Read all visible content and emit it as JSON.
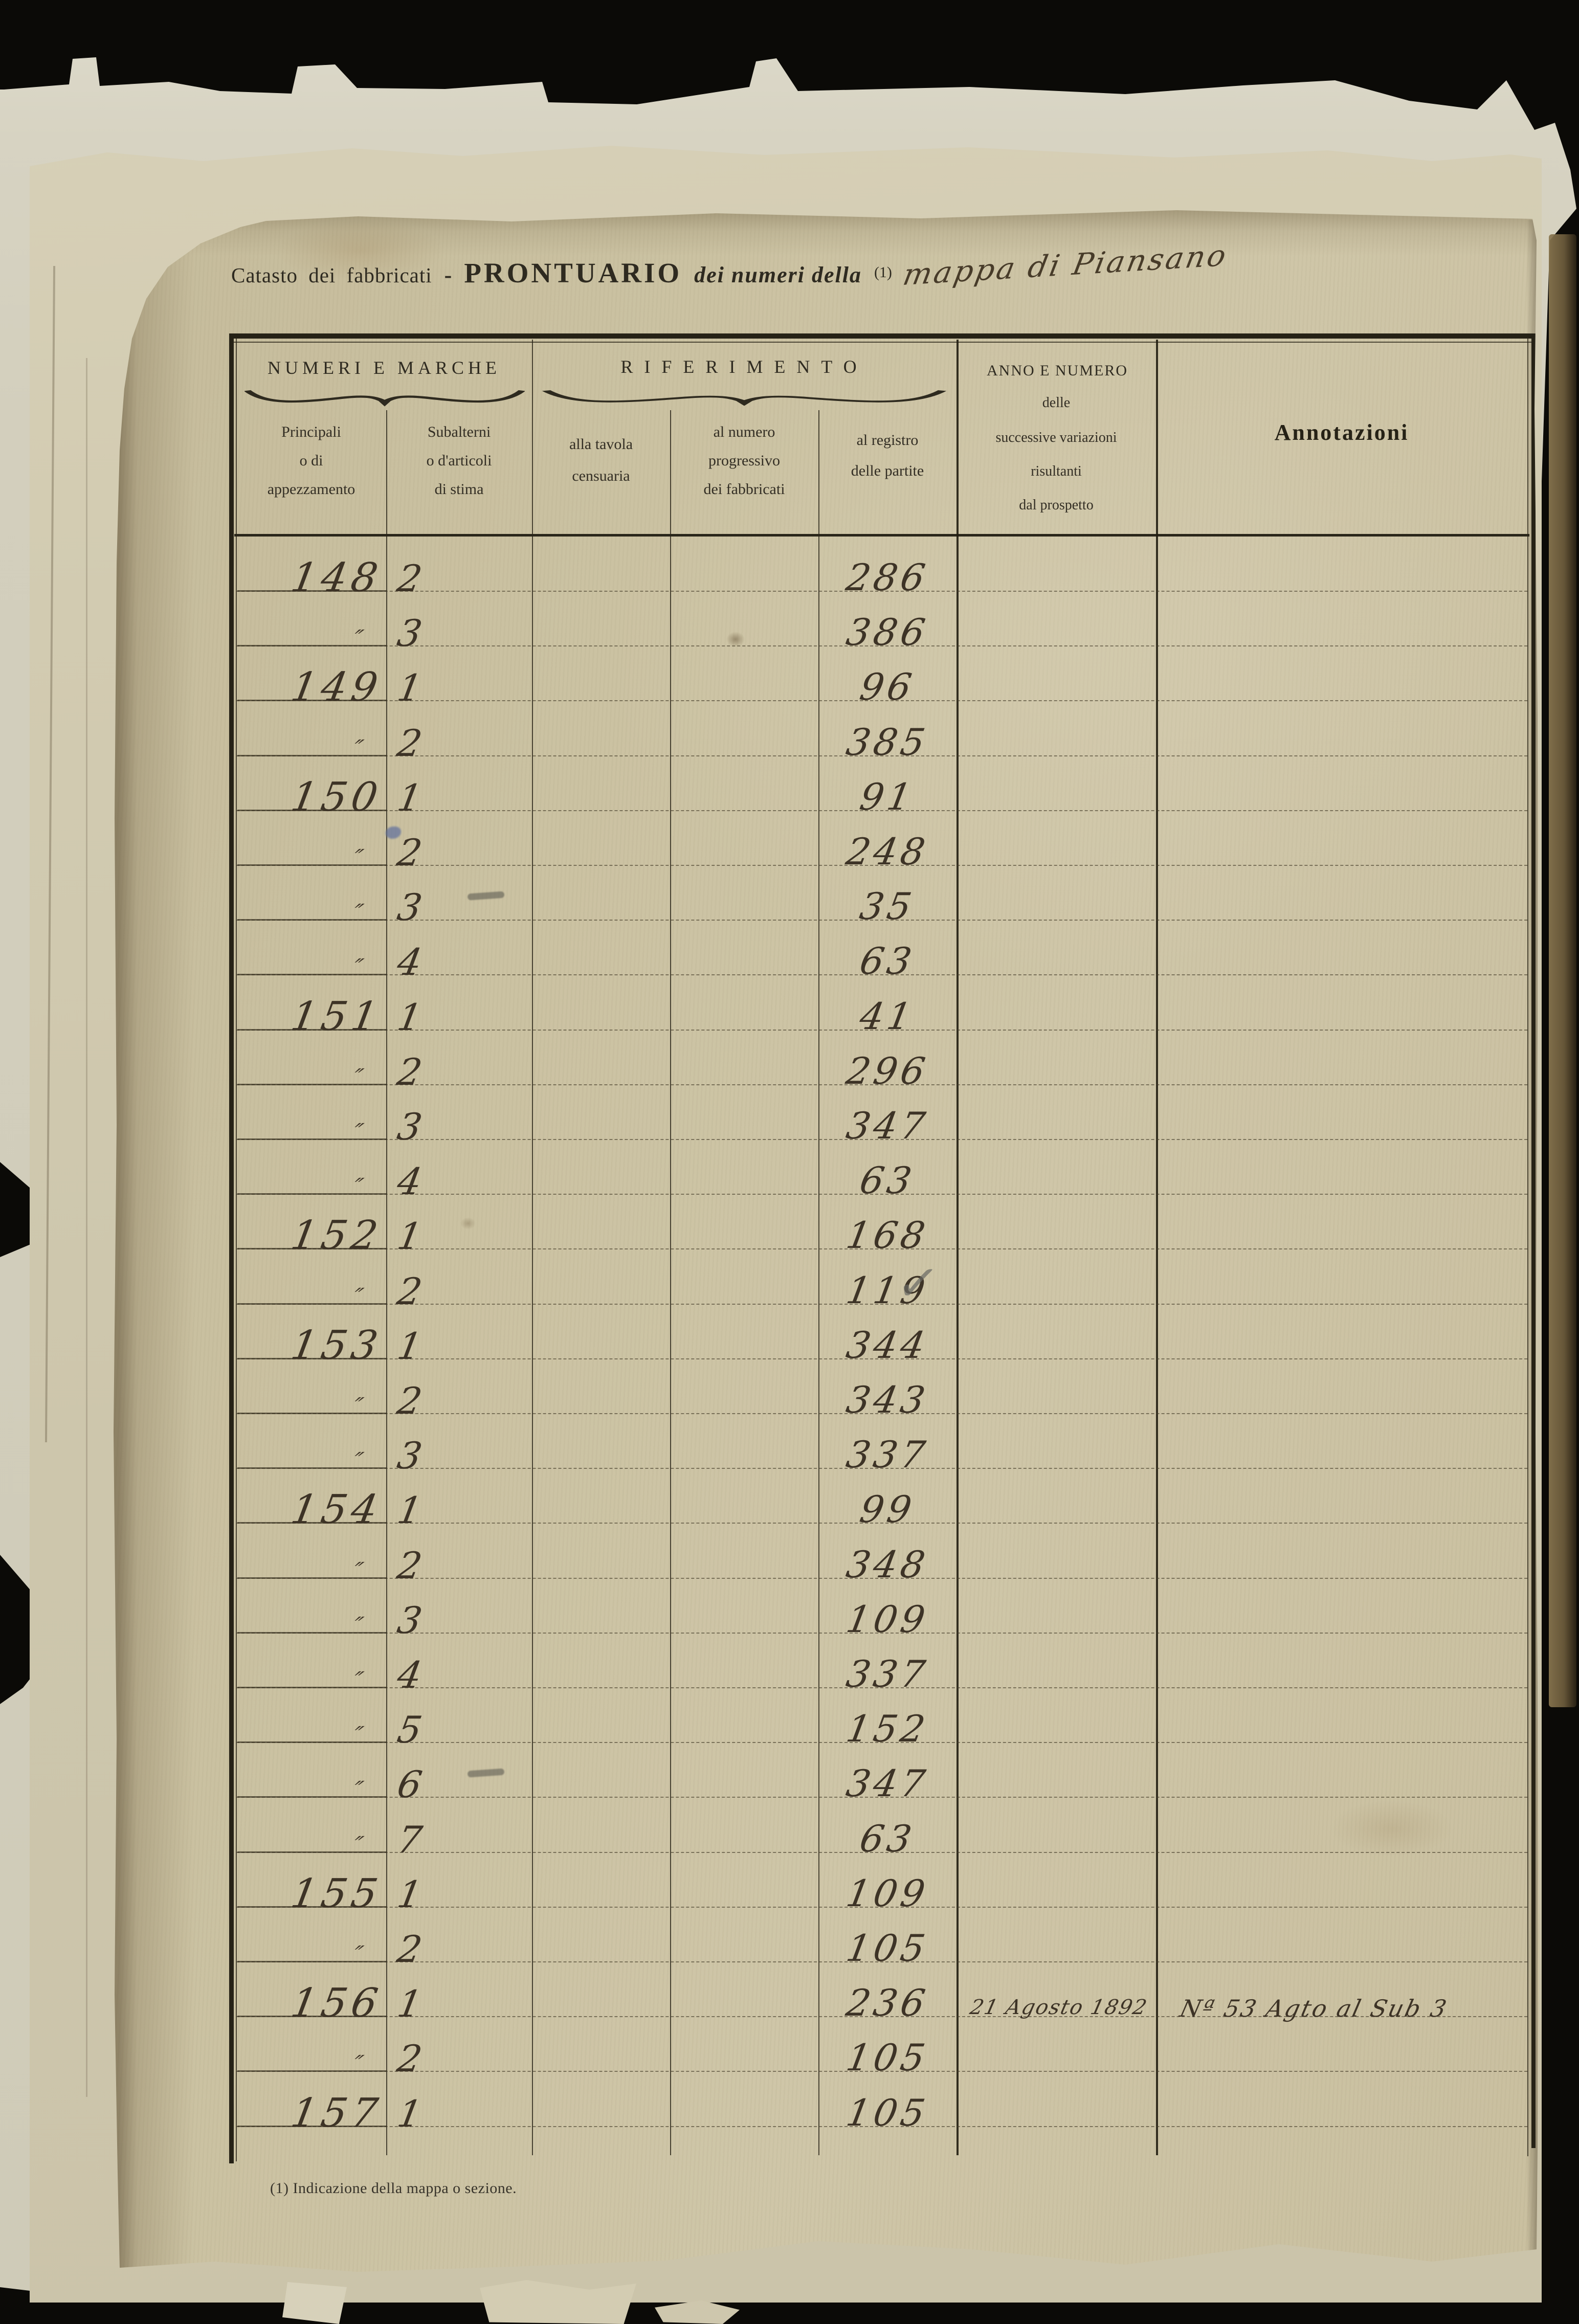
{
  "scan": {
    "title": {
      "printed_prefix": "Catasto dei fabbricati",
      "separator": "-",
      "printed_main": "PRONTUARIO",
      "printed_continuation": "dei numeri della",
      "footnote_ref": "(1)",
      "handwritten_place": "mappa di Piansano"
    },
    "footnote": "(1) Indicazione della mappa o sezione.",
    "table": {
      "group_headers": [
        {
          "label": "NUMERI E MARCHE"
        },
        {
          "label": "RIFERIMENTO"
        },
        {
          "label": "ANNO E NUMERO"
        }
      ],
      "column_headers": [
        {
          "lines": [
            "Principali",
            "o di",
            "appezzamento"
          ]
        },
        {
          "lines": [
            "Subalterni",
            "o d'articoli",
            "di stima"
          ]
        },
        {
          "lines": [
            "alla tavola",
            "censuaria"
          ]
        },
        {
          "lines": [
            "al numero",
            "progressivo",
            "dei fabbricati"
          ]
        },
        {
          "lines": [
            "al registro",
            "delle partite"
          ]
        },
        {
          "lines": [
            "delle",
            "successive variazioni",
            "risultanti",
            "dal prospetto"
          ]
        },
        {
          "lines": [
            "Annotazioni"
          ]
        }
      ],
      "rows": [
        {
          "principali": "148",
          "subalterni": "2",
          "tavola": "",
          "progressivo": "",
          "registro": "286",
          "anno": "",
          "annotazioni": ""
        },
        {
          "principali": "″",
          "subalterni": "3",
          "tavola": "",
          "progressivo": "",
          "registro": "386",
          "anno": "",
          "annotazioni": ""
        },
        {
          "principali": "149",
          "subalterni": "1",
          "tavola": "",
          "progressivo": "",
          "registro": "96",
          "anno": "",
          "annotazioni": ""
        },
        {
          "principali": "″",
          "subalterni": "2",
          "tavola": "",
          "progressivo": "",
          "registro": "385",
          "anno": "",
          "annotazioni": ""
        },
        {
          "principali": "150",
          "subalterni": "1",
          "tavola": "",
          "progressivo": "",
          "registro": "91",
          "anno": "",
          "annotazioni": ""
        },
        {
          "principali": "″",
          "subalterni": "2",
          "tavola": "",
          "progressivo": "",
          "registro": "248",
          "anno": "",
          "annotazioni": "",
          "mark": "blue-dot"
        },
        {
          "principali": "″",
          "subalterni": "3",
          "tavola": "",
          "progressivo": "",
          "registro": "35",
          "anno": "",
          "annotazioni": "",
          "mark": "pencil-dash"
        },
        {
          "principali": "″",
          "subalterni": "4",
          "tavola": "",
          "progressivo": "",
          "registro": "63",
          "anno": "",
          "annotazioni": ""
        },
        {
          "principali": "151",
          "subalterni": "1",
          "tavola": "",
          "progressivo": "",
          "registro": "41",
          "anno": "",
          "annotazioni": ""
        },
        {
          "principali": "″",
          "subalterni": "2",
          "tavola": "",
          "progressivo": "",
          "registro": "296",
          "anno": "",
          "annotazioni": ""
        },
        {
          "principali": "″",
          "subalterni": "3",
          "tavola": "",
          "progressivo": "",
          "registro": "347",
          "anno": "",
          "annotazioni": ""
        },
        {
          "principali": "″",
          "subalterni": "4",
          "tavola": "",
          "progressivo": "",
          "registro": "63",
          "anno": "",
          "annotazioni": ""
        },
        {
          "principali": "152",
          "subalterni": "1",
          "tavola": "",
          "progressivo": "",
          "registro": "168",
          "anno": "",
          "annotazioni": ""
        },
        {
          "principali": "″",
          "subalterni": "2",
          "tavola": "",
          "progressivo": "",
          "registro": "119",
          "anno": "",
          "annotazioni": "",
          "mark": "check"
        },
        {
          "principali": "153",
          "subalterni": "1",
          "tavola": "",
          "progressivo": "",
          "registro": "344",
          "anno": "",
          "annotazioni": ""
        },
        {
          "principali": "″",
          "subalterni": "2",
          "tavola": "",
          "progressivo": "",
          "registro": "343",
          "anno": "",
          "annotazioni": ""
        },
        {
          "principali": "″",
          "subalterni": "3",
          "tavola": "",
          "progressivo": "",
          "registro": "337",
          "anno": "",
          "annotazioni": ""
        },
        {
          "principali": "154",
          "subalterni": "1",
          "tavola": "",
          "progressivo": "",
          "registro": "99",
          "anno": "",
          "annotazioni": ""
        },
        {
          "principali": "″",
          "subalterni": "2",
          "tavola": "",
          "progressivo": "",
          "registro": "348",
          "anno": "",
          "annotazioni": ""
        },
        {
          "principali": "″",
          "subalterni": "3",
          "tavola": "",
          "progressivo": "",
          "registro": "109",
          "anno": "",
          "annotazioni": ""
        },
        {
          "principali": "″",
          "subalterni": "4",
          "tavola": "",
          "progressivo": "",
          "registro": "337",
          "anno": "",
          "annotazioni": ""
        },
        {
          "principali": "″",
          "subalterni": "5",
          "tavola": "",
          "progressivo": "",
          "registro": "152",
          "anno": "",
          "annotazioni": ""
        },
        {
          "principali": "″",
          "subalterni": "6",
          "tavola": "",
          "progressivo": "",
          "registro": "347",
          "anno": "",
          "annotazioni": "",
          "mark": "pencil-dash"
        },
        {
          "principali": "″",
          "subalterni": "7",
          "tavola": "",
          "progressivo": "",
          "registro": "63",
          "anno": "",
          "annotazioni": ""
        },
        {
          "principali": "155",
          "subalterni": "1",
          "tavola": "",
          "progressivo": "",
          "registro": "109",
          "anno": "",
          "annotazioni": ""
        },
        {
          "principali": "″",
          "subalterni": "2",
          "tavola": "",
          "progressivo": "",
          "registro": "105",
          "anno": "",
          "annotazioni": ""
        },
        {
          "principali": "156",
          "subalterni": "1",
          "tavola": "",
          "progressivo": "",
          "registro": "236",
          "anno": "21 Agosto 1892",
          "annotazioni": "Nª 53 Agto al Sub 3"
        },
        {
          "principali": "″",
          "subalterni": "2",
          "tavola": "",
          "progressivo": "",
          "registro": "105",
          "anno": "",
          "annotazioni": ""
        },
        {
          "principali": "157",
          "subalterni": "1",
          "tavola": "",
          "progressivo": "",
          "registro": "105",
          "anno": "",
          "annotazioni": ""
        }
      ]
    },
    "colors": {
      "background": "#0b0a07",
      "paper_main": "#c9bf9f",
      "paper_middle": "#d2cbb1",
      "paper_under": "#d7d3c2",
      "ink_print": "#2e2a20",
      "ink_hand": "#3d3326",
      "ink_pencil": "#68685e",
      "ink_blue": "#5e6e9d"
    }
  }
}
